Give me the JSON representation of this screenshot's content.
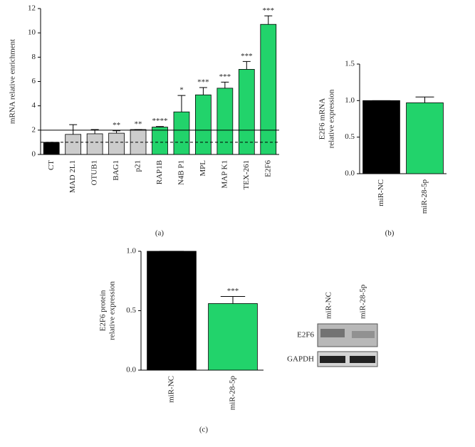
{
  "chart_data": [
    {
      "type": "bar",
      "label": "(a)",
      "ylabel": [
        "mRNA relative enrichment"
      ],
      "categories": [
        "CT",
        "MAD 2L1",
        "OTUB1",
        "BAG1",
        "p21",
        "RAP1B",
        "N4B P1",
        "MPL",
        "MAP K1",
        "TEX-261",
        "E2F6"
      ],
      "values": [
        1,
        1.65,
        1.7,
        1.75,
        2.05,
        2.25,
        3.5,
        4.9,
        5.45,
        7.0,
        10.7
      ],
      "errors": [
        0,
        0.8,
        0.35,
        0.2,
        0,
        0.05,
        1.35,
        0.6,
        0.5,
        0.65,
        0.7
      ],
      "colors": [
        "#000000",
        "#cccccc",
        "#cccccc",
        "#cccccc",
        "#cccccc",
        "#22d36b",
        "#22d36b",
        "#22d36b",
        "#22d36b",
        "#22d36b",
        "#22d36b"
      ],
      "annotations": [
        null,
        null,
        null,
        "**",
        "**",
        "****",
        "*",
        "***",
        "***",
        "***",
        "***"
      ],
      "hlines": [
        {
          "value": 2,
          "style": "solid"
        },
        {
          "value": 1,
          "style": "dashed"
        }
      ],
      "ylim": [
        0,
        12
      ],
      "yticks": [
        0,
        2,
        4,
        6,
        8,
        10,
        12
      ]
    },
    {
      "type": "bar",
      "label": "(b)",
      "ylabel": [
        "E2F6 mRNA",
        "relative expression"
      ],
      "categories": [
        "miR-NC",
        "miR-28-5p"
      ],
      "values": [
        1.0,
        0.97
      ],
      "errors": [
        0,
        0.08
      ],
      "colors": [
        "#000000",
        "#22d36b"
      ],
      "ylim": [
        0,
        1.5
      ],
      "yticks": [
        {
          "value": 0,
          "label": "0.0"
        },
        0.5,
        {
          "value": 1,
          "label": "1.0"
        },
        1.5
      ]
    },
    {
      "type": "bar",
      "label": "(c)",
      "ylabel": [
        "E2F6 protein",
        "relative expression"
      ],
      "categories": [
        "miR-NC",
        "miR-28-5p"
      ],
      "values": [
        1.0,
        0.56
      ],
      "errors": [
        0,
        0.06
      ],
      "colors": [
        "#000000",
        "#22d36b"
      ],
      "annotations": [
        null,
        "***"
      ],
      "ylim": [
        0,
        1
      ],
      "yticks": [
        {
          "value": 0,
          "label": "0.0"
        },
        0.5,
        {
          "value": 1,
          "label": "1.0"
        }
      ]
    }
  ],
  "blot": {
    "lanes": [
      "miR-NC",
      "miR-28-5p"
    ],
    "rows": [
      "E2F6",
      "GAPDH"
    ]
  }
}
